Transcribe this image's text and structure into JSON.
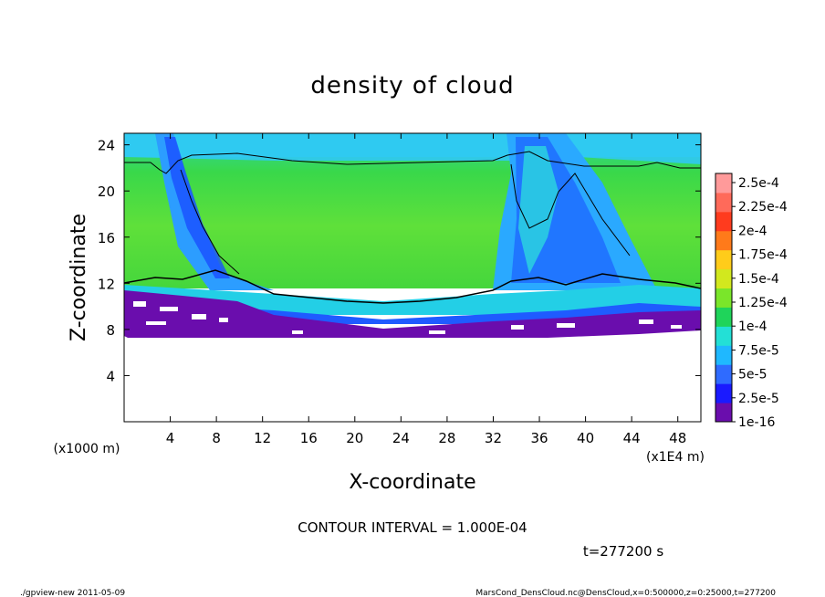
{
  "chart_data": {
    "type": "heatmap",
    "title": "density of cloud",
    "xlabel": "X-coordinate",
    "ylabel": "Z-coordinate",
    "x_unit": "(x1E4 m)",
    "y_unit": "(x1000 m)",
    "xlim": [
      0,
      50
    ],
    "ylim": [
      0,
      25
    ],
    "x_ticks": [
      4,
      8,
      12,
      16,
      20,
      24,
      28,
      32,
      36,
      40,
      44,
      48
    ],
    "y_ticks": [
      4,
      8,
      12,
      16,
      20,
      24
    ],
    "colorbar": {
      "labels": [
        "1e-16",
        "2.5e-5",
        "5e-5",
        "7.5e-5",
        "1e-4",
        "1.25e-4",
        "1.5e-4",
        "1.75e-4",
        "2e-4",
        "2.25e-4",
        "2.5e-4"
      ],
      "colors": [
        "#6a0dad",
        "#1a1aff",
        "#2f6bff",
        "#1fb8ff",
        "#23e0d6",
        "#1fd45a",
        "#7ae62a",
        "#d2e81e",
        "#ffcc1a",
        "#ff7a1a",
        "#ff3b1e",
        "#ff6a5a",
        "#ff9a9a"
      ]
    },
    "cloud_layer": {
      "base_km": [
        9.5,
        9.0,
        8.0,
        7.5,
        7.5,
        7.5,
        7.5,
        7.5,
        7.5,
        7.5,
        7.5,
        7.5,
        7.5,
        7.5
      ],
      "top_km": 24,
      "contour_level_top_km": 22.4
    },
    "contour_interval": "CONTOUR INTERVAL = 1.000E-04",
    "time_label": "t=277200 s"
  },
  "footer": {
    "left": "./gpview-new   2011-05-09",
    "right": "MarsCond_DensCloud.nc@DensCloud,x=0:500000,z=0:25000,t=277200"
  },
  "colors": {
    "background": "#ffffff",
    "main_fill": "#3fdc3a",
    "upper_fill": "#27c8f0",
    "purple": "#6a0dad"
  }
}
